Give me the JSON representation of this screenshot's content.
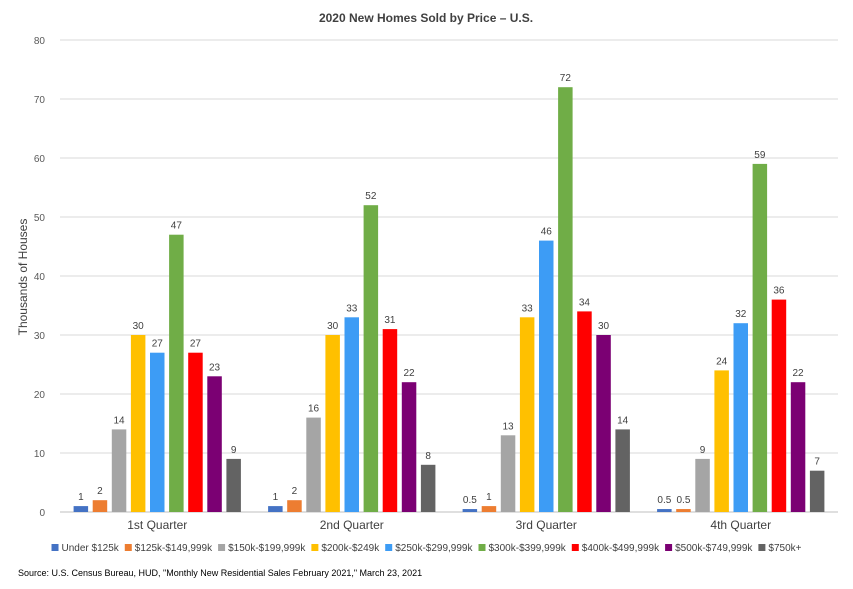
{
  "chart_data": {
    "type": "bar",
    "title": "2020 New Homes Sold  by Price – U.S.",
    "ylabel": "Thousands of Houses",
    "xlabel": "",
    "ylim": [
      0,
      80
    ],
    "yticks": [
      0,
      10,
      20,
      30,
      40,
      50,
      60,
      70,
      80
    ],
    "grid": true,
    "legend_position": "bottom",
    "categories": [
      "1st Quarter",
      "2nd Quarter",
      "3rd Quarter",
      "4th Quarter"
    ],
    "series": [
      {
        "name": "Under $125k",
        "color": "#4472c4",
        "values": [
          1,
          1,
          0.5,
          0.5
        ]
      },
      {
        "name": "$125k-$149,999k",
        "color": "#ed7d31",
        "values": [
          2,
          2,
          1,
          0.5
        ]
      },
      {
        "name": "$150k-$199,999k",
        "color": "#a5a5a5",
        "values": [
          14,
          16,
          13,
          9
        ]
      },
      {
        "name": "$200k-$249k",
        "color": "#ffc000",
        "values": [
          30,
          30,
          33,
          24
        ]
      },
      {
        "name": "$250k-$299,999k",
        "color": "#3d9cf5",
        "values": [
          27,
          33,
          46,
          32
        ]
      },
      {
        "name": "$300k-$399,999k",
        "color": "#70ad47",
        "values": [
          47,
          52,
          72,
          59
        ]
      },
      {
        "name": "$400k-$499,999k",
        "color": "#ff0000",
        "values": [
          27,
          31,
          34,
          36
        ]
      },
      {
        "name": "$500k-$749,999k",
        "color": "#7b0073",
        "values": [
          23,
          22,
          30,
          22
        ]
      },
      {
        "name": "$750k+",
        "color": "#636363",
        "values": [
          9,
          8,
          14,
          7
        ]
      }
    ],
    "source": "Source: U.S. Census Bureau, HUD, \"Monthly New Residential Sales February 2021,\" March 23, 2021"
  }
}
